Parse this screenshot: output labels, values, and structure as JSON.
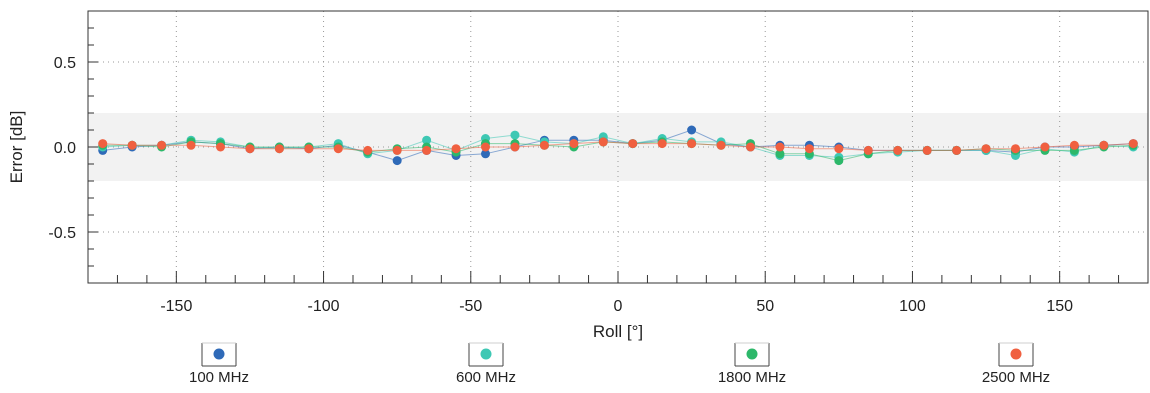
{
  "chart_data": {
    "type": "scatter",
    "xlabel": "Roll [°]",
    "ylabel": "Error [dB]",
    "xlim": [
      -180,
      180
    ],
    "ylim": [
      -0.8,
      0.8
    ],
    "xticks": [
      -150,
      -100,
      -50,
      0,
      50,
      100,
      150
    ],
    "xtick_labels": [
      "-150",
      "-100",
      "-50",
      "0",
      "50",
      "100",
      "150"
    ],
    "yticks": [
      -0.5,
      0.0,
      0.5
    ],
    "ytick_labels": [
      "-0.5",
      "0.0",
      "0.5"
    ],
    "grid": true,
    "tolerance_band": [
      -0.2,
      0.2
    ],
    "legend_position": "bottom",
    "x": [
      -175,
      -165,
      -155,
      -145,
      -135,
      -125,
      -115,
      -105,
      -95,
      -85,
      -75,
      -65,
      -55,
      -45,
      -35,
      -25,
      -15,
      -5,
      5,
      15,
      25,
      35,
      45,
      55,
      65,
      75,
      85,
      95,
      105,
      115,
      125,
      135,
      145,
      155,
      165,
      175
    ],
    "series": [
      {
        "name": "100 MHz",
        "color": "#2f6ab8",
        "values": [
          -0.02,
          0.0,
          0.01,
          0.03,
          0.02,
          -0.01,
          0.0,
          -0.01,
          0.01,
          -0.03,
          -0.08,
          -0.02,
          -0.05,
          -0.04,
          0.0,
          0.04,
          0.04,
          0.04,
          0.02,
          0.04,
          0.1,
          0.02,
          0.0,
          0.01,
          0.01,
          0.0,
          -0.02,
          -0.02,
          -0.02,
          -0.02,
          -0.02,
          -0.03,
          0.0,
          0.0,
          0.01,
          0.02
        ]
      },
      {
        "name": "600 MHz",
        "color": "#3ec8b4",
        "values": [
          0.0,
          0.01,
          0.01,
          0.04,
          0.03,
          0.0,
          -0.01,
          0.0,
          0.02,
          -0.04,
          -0.02,
          0.04,
          -0.02,
          0.05,
          0.07,
          0.03,
          0.02,
          0.06,
          0.02,
          0.05,
          0.03,
          0.03,
          0.0,
          -0.05,
          -0.05,
          -0.06,
          -0.04,
          -0.03,
          -0.02,
          -0.02,
          -0.02,
          -0.05,
          -0.01,
          -0.03,
          0.01,
          0.0
        ]
      },
      {
        "name": "1800 MHz",
        "color": "#2db86a",
        "values": [
          0.01,
          0.01,
          0.0,
          0.03,
          0.02,
          0.0,
          0.0,
          0.0,
          0.0,
          -0.03,
          -0.01,
          0.0,
          -0.03,
          0.02,
          0.02,
          0.01,
          0.0,
          0.03,
          0.02,
          0.03,
          0.02,
          0.01,
          0.02,
          -0.04,
          -0.04,
          -0.08,
          -0.04,
          -0.02,
          -0.02,
          -0.02,
          -0.01,
          -0.02,
          -0.02,
          -0.02,
          0.0,
          0.01
        ]
      },
      {
        "name": "2500 MHz",
        "color": "#f06040",
        "values": [
          0.02,
          0.01,
          0.01,
          0.01,
          0.0,
          -0.01,
          -0.01,
          -0.01,
          -0.01,
          -0.02,
          -0.02,
          -0.02,
          -0.01,
          0.0,
          0.0,
          0.01,
          0.02,
          0.03,
          0.02,
          0.02,
          0.02,
          0.01,
          0.0,
          0.0,
          -0.01,
          -0.01,
          -0.02,
          -0.02,
          -0.02,
          -0.02,
          -0.01,
          -0.01,
          0.0,
          0.01,
          0.01,
          0.02
        ]
      }
    ]
  }
}
